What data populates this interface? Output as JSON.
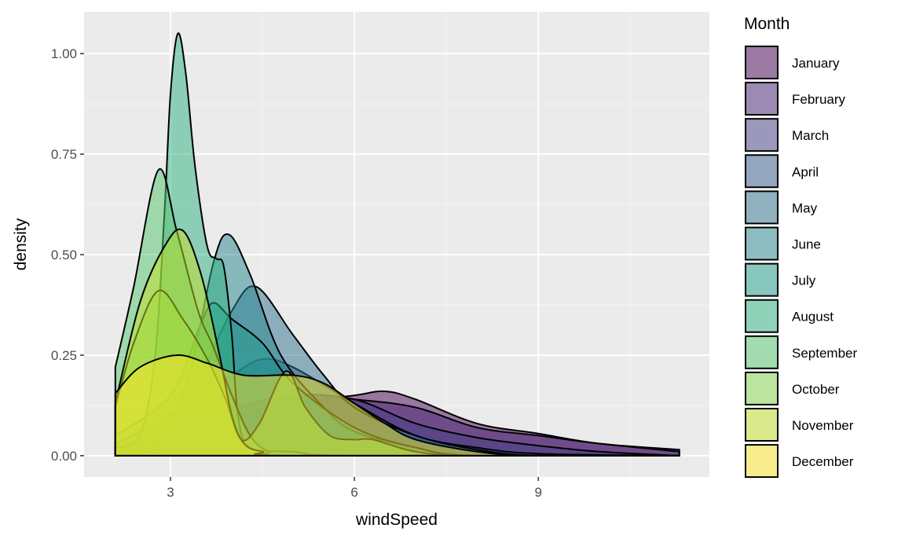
{
  "chart_data": {
    "type": "area",
    "subtype": "density",
    "xlabel": "windSpeed",
    "ylabel": "density",
    "xlim": [
      1.59,
      11.79
    ],
    "ylim": [
      -0.053,
      1.104
    ],
    "xticks": [
      3,
      6,
      9
    ],
    "xtick_labels": [
      "3",
      "6",
      "9"
    ],
    "yticks": [
      0,
      0.25,
      0.5,
      0.75,
      1.0
    ],
    "ytick_labels": [
      "0.00",
      "0.25",
      "0.50",
      "0.75",
      "1.00"
    ],
    "grid": true,
    "panel_background": "#EBEBEB",
    "legend": {
      "title": "Month",
      "position": "right"
    },
    "fill_alpha": 0.5,
    "series": [
      {
        "name": "January",
        "color": "#440154",
        "points": [
          [
            2.1,
            0.0
          ],
          [
            3,
            0.05
          ],
          [
            4,
            0.1
          ],
          [
            5,
            0.13
          ],
          [
            6,
            0.15
          ],
          [
            6.5,
            0.16
          ],
          [
            7,
            0.14
          ],
          [
            8,
            0.08
          ],
          [
            9,
            0.055
          ],
          [
            10,
            0.03
          ],
          [
            11.3,
            0.015
          ]
        ]
      },
      {
        "name": "February",
        "color": "#482173",
        "points": [
          [
            2.1,
            0.02
          ],
          [
            3,
            0.07
          ],
          [
            4,
            0.12
          ],
          [
            5,
            0.15
          ],
          [
            6,
            0.14
          ],
          [
            7,
            0.12
          ],
          [
            8,
            0.07
          ],
          [
            9,
            0.05
          ],
          [
            10,
            0.03
          ],
          [
            11.3,
            0.01
          ]
        ]
      },
      {
        "name": "March",
        "color": "#433E85",
        "points": [
          [
            2.1,
            0.01
          ],
          [
            3,
            0.05
          ],
          [
            4,
            0.11
          ],
          [
            5,
            0.15
          ],
          [
            6,
            0.14
          ],
          [
            7,
            0.08
          ],
          [
            8,
            0.045
          ],
          [
            9,
            0.025
          ],
          [
            10,
            0.01
          ],
          [
            11.3,
            0.0
          ]
        ]
      },
      {
        "name": "April",
        "color": "#38598C",
        "points": [
          [
            2.1,
            0.03
          ],
          [
            3,
            0.1
          ],
          [
            4,
            0.2
          ],
          [
            4.5,
            0.24
          ],
          [
            5,
            0.22
          ],
          [
            6,
            0.13
          ],
          [
            7,
            0.05
          ],
          [
            8,
            0.02
          ],
          [
            9,
            0.005
          ],
          [
            11.3,
            0.0
          ]
        ]
      },
      {
        "name": "May",
        "color": "#2D708E",
        "points": [
          [
            2.1,
            0.0
          ],
          [
            3,
            0.05
          ],
          [
            3.5,
            0.2
          ],
          [
            4,
            0.36
          ],
          [
            4.4,
            0.42
          ],
          [
            5,
            0.3
          ],
          [
            5.5,
            0.2
          ],
          [
            6,
            0.12
          ],
          [
            7,
            0.05
          ],
          [
            8,
            0.015
          ],
          [
            9,
            0.0
          ],
          [
            11.3,
            0.0
          ]
        ]
      },
      {
        "name": "June",
        "color": "#25858E",
        "points": [
          [
            2.1,
            0.0
          ],
          [
            2.8,
            0.02
          ],
          [
            3.3,
            0.2
          ],
          [
            3.7,
            0.48
          ],
          [
            3.95,
            0.55
          ],
          [
            4.3,
            0.45
          ],
          [
            4.8,
            0.25
          ],
          [
            5.5,
            0.12
          ],
          [
            6,
            0.06
          ],
          [
            7,
            0.02
          ],
          [
            8,
            0.0
          ],
          [
            11.3,
            0.0
          ]
        ]
      },
      {
        "name": "July",
        "color": "#1E9B8A",
        "points": [
          [
            2.1,
            0.05
          ],
          [
            3,
            0.15
          ],
          [
            3.5,
            0.33
          ],
          [
            3.7,
            0.38
          ],
          [
            4,
            0.34
          ],
          [
            4.5,
            0.28
          ],
          [
            5,
            0.18
          ],
          [
            6,
            0.07
          ],
          [
            7,
            0.02
          ],
          [
            8,
            0.0
          ],
          [
            11.3,
            0.0
          ]
        ]
      },
      {
        "name": "August",
        "color": "#2BB07F",
        "points": [
          [
            2.1,
            0.02
          ],
          [
            2.5,
            0.05
          ],
          [
            2.75,
            0.25
          ],
          [
            2.9,
            0.6
          ],
          [
            3.0,
            0.9
          ],
          [
            3.12,
            1.05
          ],
          [
            3.25,
            0.95
          ],
          [
            3.4,
            0.72
          ],
          [
            3.6,
            0.52
          ],
          [
            3.75,
            0.49
          ],
          [
            3.87,
            0.47
          ],
          [
            4.0,
            0.3
          ],
          [
            4.1,
            0.1
          ],
          [
            4.3,
            0.02
          ],
          [
            5,
            0.01
          ],
          [
            6,
            0.0
          ],
          [
            11.3,
            0.0
          ]
        ]
      },
      {
        "name": "September",
        "color": "#51C56A",
        "points": [
          [
            2.1,
            0.22
          ],
          [
            2.4,
            0.42
          ],
          [
            2.8,
            0.71
          ],
          [
            3.1,
            0.56
          ],
          [
            3.45,
            0.36
          ],
          [
            3.7,
            0.27
          ],
          [
            4.0,
            0.15
          ],
          [
            4.3,
            0.05
          ],
          [
            4.6,
            0.01
          ],
          [
            5,
            0.0
          ],
          [
            11.3,
            0.0
          ]
        ]
      },
      {
        "name": "October",
        "color": "#85D54A",
        "points": [
          [
            2.1,
            0.12
          ],
          [
            2.4,
            0.28
          ],
          [
            2.8,
            0.41
          ],
          [
            3.2,
            0.34
          ],
          [
            3.6,
            0.24
          ],
          [
            3.9,
            0.14
          ],
          [
            4.15,
            0.04
          ],
          [
            4.45,
            0.08
          ],
          [
            4.88,
            0.21
          ],
          [
            5.2,
            0.12
          ],
          [
            5.6,
            0.05
          ],
          [
            6,
            0.04
          ],
          [
            6.3,
            0.04
          ],
          [
            7,
            0.01
          ],
          [
            8,
            0.0
          ],
          [
            11.3,
            0.0
          ]
        ]
      },
      {
        "name": "November",
        "color": "#C2DF23",
        "points": [
          [
            2.1,
            0.13
          ],
          [
            2.5,
            0.38
          ],
          [
            2.9,
            0.52
          ],
          [
            3.2,
            0.56
          ],
          [
            3.5,
            0.45
          ],
          [
            3.8,
            0.25
          ],
          [
            4.0,
            0.1
          ],
          [
            4.2,
            0.03
          ],
          [
            4.5,
            0.01
          ],
          [
            5,
            0.0
          ],
          [
            11.3,
            0.0
          ]
        ]
      },
      {
        "name": "December",
        "color": "#FDE725",
        "points": [
          [
            2.1,
            0.155
          ],
          [
            2.5,
            0.22
          ],
          [
            3.1,
            0.25
          ],
          [
            3.6,
            0.23
          ],
          [
            4.2,
            0.2
          ],
          [
            5,
            0.2
          ],
          [
            5.5,
            0.18
          ],
          [
            6,
            0.13
          ],
          [
            6.5,
            0.08
          ],
          [
            7,
            0.04
          ],
          [
            8,
            0.01
          ],
          [
            9,
            0.0
          ],
          [
            11.3,
            0.0
          ]
        ]
      }
    ]
  }
}
